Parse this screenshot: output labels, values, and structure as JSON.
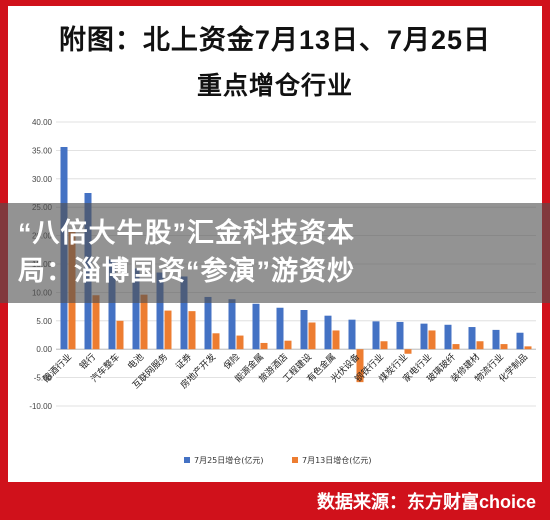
{
  "header": {
    "title_line1": "附图：北上资金7月13日、7月25日",
    "title_line2": "重点增仓行业"
  },
  "overlay": {
    "headline_line1": "“八倍大牛股”汇金科技资本",
    "headline_line2": "局：淄博国资“参演”游资炒"
  },
  "footer": {
    "source": "数据来源：东方财富choice"
  },
  "colors": {
    "frame": "#d0111b",
    "series_blue": "#4472c4",
    "series_orange": "#ed7d31"
  },
  "chart_data": {
    "type": "bar",
    "categories": [
      "酿酒行业",
      "银行",
      "汽车整车",
      "电池",
      "互联网服务",
      "证券",
      "房地产开发",
      "保险",
      "能源金属",
      "旅游酒店",
      "工程建设",
      "有色金属",
      "光伏设备",
      "钢铁行业",
      "煤炭行业",
      "家电行业",
      "玻璃玻纤",
      "装修建材",
      "物流行业",
      "化学制品"
    ],
    "series": [
      {
        "name": "7月25日增仓(亿元)",
        "values": [
          35.6,
          27.5,
          15.8,
          14.2,
          13.5,
          12.8,
          9.2,
          8.8,
          8.0,
          7.3,
          6.9,
          5.9,
          5.2,
          4.9,
          4.8,
          4.5,
          4.3,
          3.9,
          3.4,
          2.9
        ]
      },
      {
        "name": "7月13日增仓(亿元)",
        "values": [
          20.7,
          9.5,
          5.0,
          9.6,
          6.8,
          6.7,
          2.8,
          2.4,
          1.1,
          1.5,
          4.7,
          3.3,
          -5.8,
          1.4,
          -0.8,
          3.3,
          0.9,
          1.4,
          0.9,
          0.5
        ]
      }
    ],
    "ylim": [
      -10,
      40
    ],
    "yticks": [
      "-10.00",
      "-5.00",
      "0.00",
      "5.00",
      "10.00",
      "15.00",
      "20.00",
      "25.00",
      "30.00",
      "35.00",
      "40.00"
    ],
    "grid": true,
    "legend_position": "bottom"
  }
}
